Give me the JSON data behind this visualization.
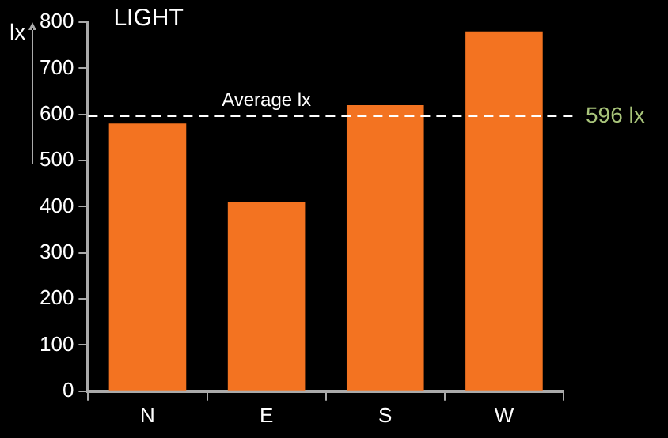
{
  "chart_data": {
    "type": "bar",
    "title": "LIGHT",
    "ylabel": "lx",
    "categories": [
      "N",
      "E",
      "S",
      "W"
    ],
    "values": [
      580,
      410,
      620,
      780
    ],
    "color": "#f37321",
    "ylim": [
      0,
      800
    ],
    "yticks": [
      0,
      100,
      200,
      300,
      400,
      500,
      600,
      700,
      800
    ],
    "grid": false,
    "legend": false,
    "ref_lines": [
      {
        "axis": "y",
        "value": 596,
        "label": "596 lx",
        "color": "#ffffff",
        "line_style": "dashed"
      }
    ],
    "annotations": [
      {
        "text": "Average lx",
        "x": "E",
        "y": 596
      }
    ]
  }
}
